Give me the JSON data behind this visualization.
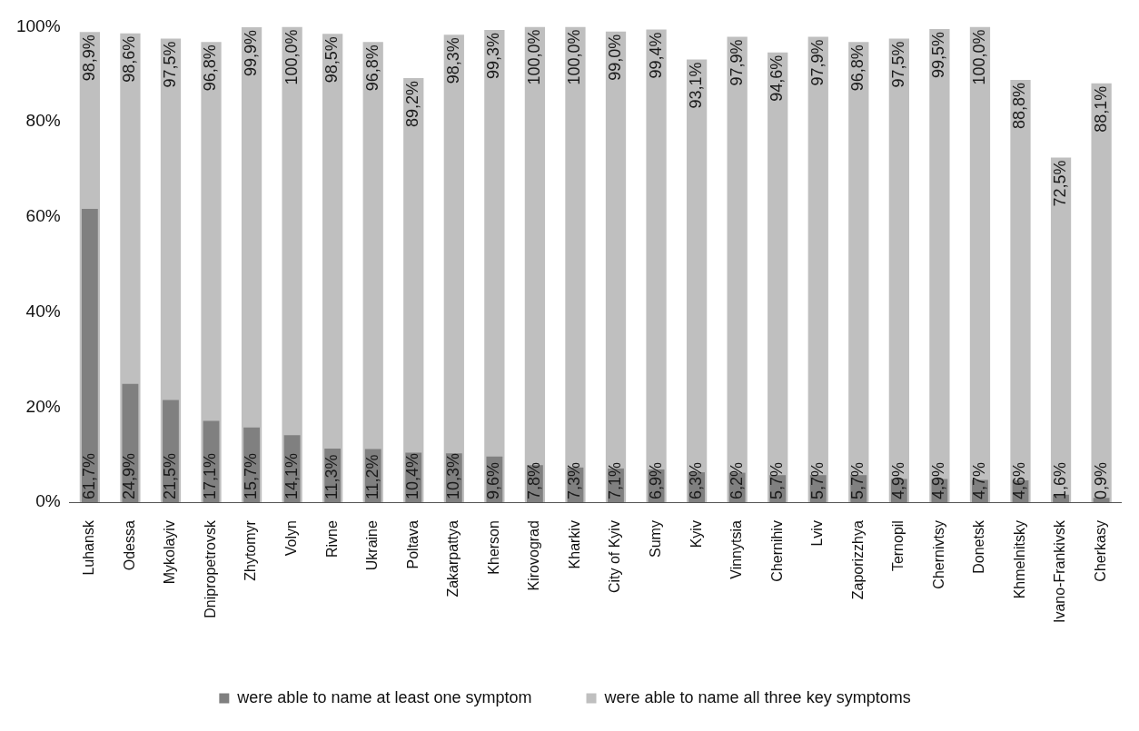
{
  "chart_data": {
    "type": "bar",
    "categories": [
      "Luhansk",
      "Odessa",
      "Mykolayiv",
      "Dnipropetrovsk",
      "Zhytomyr",
      "Volyn",
      "Rivne",
      "Ukraine",
      "Poltava",
      "Zakarpattya",
      "Kherson",
      "Kirovograd",
      "Kharkiv",
      "City of Kyiv",
      "Sumy",
      "Kyiv",
      "Vinnytsia",
      "Chernihiv",
      "Lviv",
      "Zaporizzhya",
      "Ternopil",
      "Chernivtsy",
      "Donetsk",
      "Khmelnitsky",
      "Ivano-Frankivsk",
      "Cherkasy"
    ],
    "series": [
      {
        "name": "were able to name at least one symptom",
        "color": "#808080",
        "values": [
          61.7,
          24.9,
          21.5,
          17.1,
          15.7,
          14.1,
          11.3,
          11.2,
          10.4,
          10.3,
          9.6,
          7.8,
          7.3,
          7.1,
          6.9,
          6.3,
          6.2,
          5.7,
          5.7,
          5.7,
          4.9,
          4.9,
          4.7,
          4.6,
          1.6,
          0.9
        ],
        "value_labels": [
          "61,7%",
          "24,9%",
          "21,5%",
          "17,1%",
          "15,7%",
          "14,1%",
          "11,3%",
          "11,2%",
          "10,4%",
          "10,3%",
          "9,6%",
          "7,8%",
          "7,3%",
          "7,1%",
          "6,9%",
          "6,3%",
          "6,2%",
          "5,7%",
          "5,7%",
          "5,7%",
          "4,9%",
          "4,9%",
          "4,7%",
          "4,6%",
          "1,6%",
          "0,9%"
        ]
      },
      {
        "name": "were able to name all three key symptoms",
        "color": "#bfbfbf",
        "values": [
          98.9,
          98.6,
          97.5,
          96.8,
          99.9,
          100,
          98.5,
          96.8,
          89.2,
          98.3,
          99.3,
          100,
          100,
          99.0,
          99.4,
          93.1,
          97.9,
          94.6,
          97.9,
          96.8,
          97.5,
          99.5,
          100,
          88.8,
          72.5,
          88.1
        ],
        "value_labels": [
          "98,9%",
          "98,6%",
          "97,5%",
          "96,8%",
          "99,9%",
          "100,0%",
          "98,5%",
          "96,8%",
          "89,2%",
          "98,3%",
          "99,3%",
          "100,0%",
          "100,0%",
          "99,0%",
          "99,4%",
          "93,1%",
          "97,9%",
          "94,6%",
          "97,9%",
          "96,8%",
          "97,5%",
          "99,5%",
          "100,0%",
          "88,8%",
          "72,5%",
          "88,1%"
        ]
      }
    ],
    "ylim": [
      0,
      100
    ],
    "yticks": [
      {
        "value": 0,
        "label": "0%"
      },
      {
        "value": 20,
        "label": "20%"
      },
      {
        "value": 40,
        "label": "40%"
      },
      {
        "value": 60,
        "label": "60%"
      },
      {
        "value": 80,
        "label": "80%"
      },
      {
        "value": 100,
        "label": "100%"
      }
    ],
    "grid": false,
    "legend": "bottom"
  }
}
